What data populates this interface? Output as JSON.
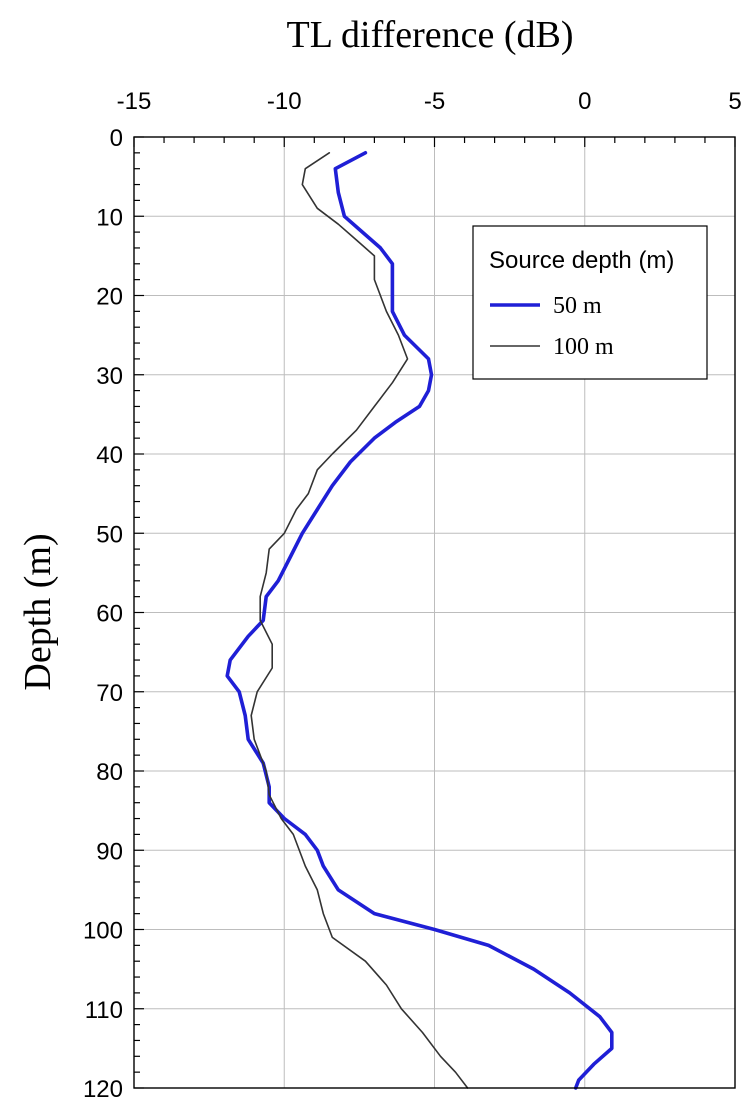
{
  "chart_data": {
    "type": "line",
    "title": "",
    "xlabel": "TL difference (dB)",
    "ylabel": "Depth (m)",
    "xlim": [
      -15,
      5
    ],
    "ylim": [
      0,
      120
    ],
    "y_inverted": true,
    "x_axis_position": "top",
    "x_ticks": [
      -15,
      -10,
      -5,
      0,
      5
    ],
    "y_ticks": [
      0,
      10,
      20,
      30,
      40,
      50,
      60,
      70,
      80,
      90,
      100,
      110,
      120
    ],
    "grid": true,
    "legend": {
      "title": "Source depth (m)",
      "placement": "top-right"
    },
    "series": [
      {
        "name": "50 m",
        "color": "#1f1fd6",
        "points": [
          [
            -7.3,
            2
          ],
          [
            -8.3,
            4
          ],
          [
            -8.2,
            7
          ],
          [
            -8.0,
            10
          ],
          [
            -7.4,
            12
          ],
          [
            -6.8,
            14
          ],
          [
            -6.4,
            16
          ],
          [
            -6.4,
            19
          ],
          [
            -6.4,
            22
          ],
          [
            -6.0,
            25
          ],
          [
            -5.2,
            28
          ],
          [
            -5.1,
            30
          ],
          [
            -5.2,
            32
          ],
          [
            -5.5,
            34
          ],
          [
            -6.3,
            36
          ],
          [
            -7.0,
            38
          ],
          [
            -7.8,
            41
          ],
          [
            -8.4,
            44
          ],
          [
            -8.9,
            47
          ],
          [
            -9.4,
            50
          ],
          [
            -9.8,
            53
          ],
          [
            -10.2,
            56
          ],
          [
            -10.6,
            58
          ],
          [
            -10.7,
            61
          ],
          [
            -11.2,
            63
          ],
          [
            -11.8,
            66
          ],
          [
            -11.9,
            68
          ],
          [
            -11.5,
            70
          ],
          [
            -11.3,
            73
          ],
          [
            -11.2,
            76
          ],
          [
            -10.7,
            79
          ],
          [
            -10.5,
            82
          ],
          [
            -10.5,
            84
          ],
          [
            -10.0,
            86
          ],
          [
            -9.3,
            88
          ],
          [
            -8.9,
            90
          ],
          [
            -8.7,
            92
          ],
          [
            -8.2,
            95
          ],
          [
            -7.0,
            98
          ],
          [
            -5.0,
            100
          ],
          [
            -3.2,
            102
          ],
          [
            -1.7,
            105
          ],
          [
            -0.5,
            108
          ],
          [
            0.5,
            111
          ],
          [
            0.9,
            113
          ],
          [
            0.9,
            115
          ],
          [
            0.3,
            117
          ],
          [
            -0.2,
            119
          ],
          [
            -0.3,
            120
          ]
        ]
      },
      {
        "name": "100 m",
        "color": "#333333",
        "points": [
          [
            -8.5,
            2
          ],
          [
            -9.3,
            4
          ],
          [
            -9.4,
            6
          ],
          [
            -8.9,
            9
          ],
          [
            -8.2,
            11
          ],
          [
            -7.6,
            13
          ],
          [
            -7.0,
            15
          ],
          [
            -7.0,
            18
          ],
          [
            -6.6,
            22
          ],
          [
            -6.2,
            25
          ],
          [
            -5.9,
            28
          ],
          [
            -6.4,
            31
          ],
          [
            -7.0,
            34
          ],
          [
            -7.6,
            37
          ],
          [
            -8.4,
            40
          ],
          [
            -8.9,
            42
          ],
          [
            -9.2,
            45
          ],
          [
            -9.6,
            47
          ],
          [
            -10.0,
            50
          ],
          [
            -10.5,
            52
          ],
          [
            -10.6,
            55
          ],
          [
            -10.8,
            58
          ],
          [
            -10.8,
            61
          ],
          [
            -10.4,
            64
          ],
          [
            -10.4,
            67
          ],
          [
            -10.9,
            70
          ],
          [
            -11.1,
            73
          ],
          [
            -11.0,
            76
          ],
          [
            -10.8,
            78
          ],
          [
            -10.6,
            80
          ],
          [
            -10.5,
            83
          ],
          [
            -10.1,
            86
          ],
          [
            -9.7,
            88
          ],
          [
            -9.3,
            92
          ],
          [
            -8.9,
            95
          ],
          [
            -8.7,
            98
          ],
          [
            -8.4,
            101
          ],
          [
            -7.3,
            104
          ],
          [
            -6.6,
            107
          ],
          [
            -6.1,
            110
          ],
          [
            -5.4,
            113
          ],
          [
            -4.8,
            116
          ],
          [
            -4.3,
            118
          ],
          [
            -3.9,
            120
          ]
        ]
      }
    ]
  }
}
